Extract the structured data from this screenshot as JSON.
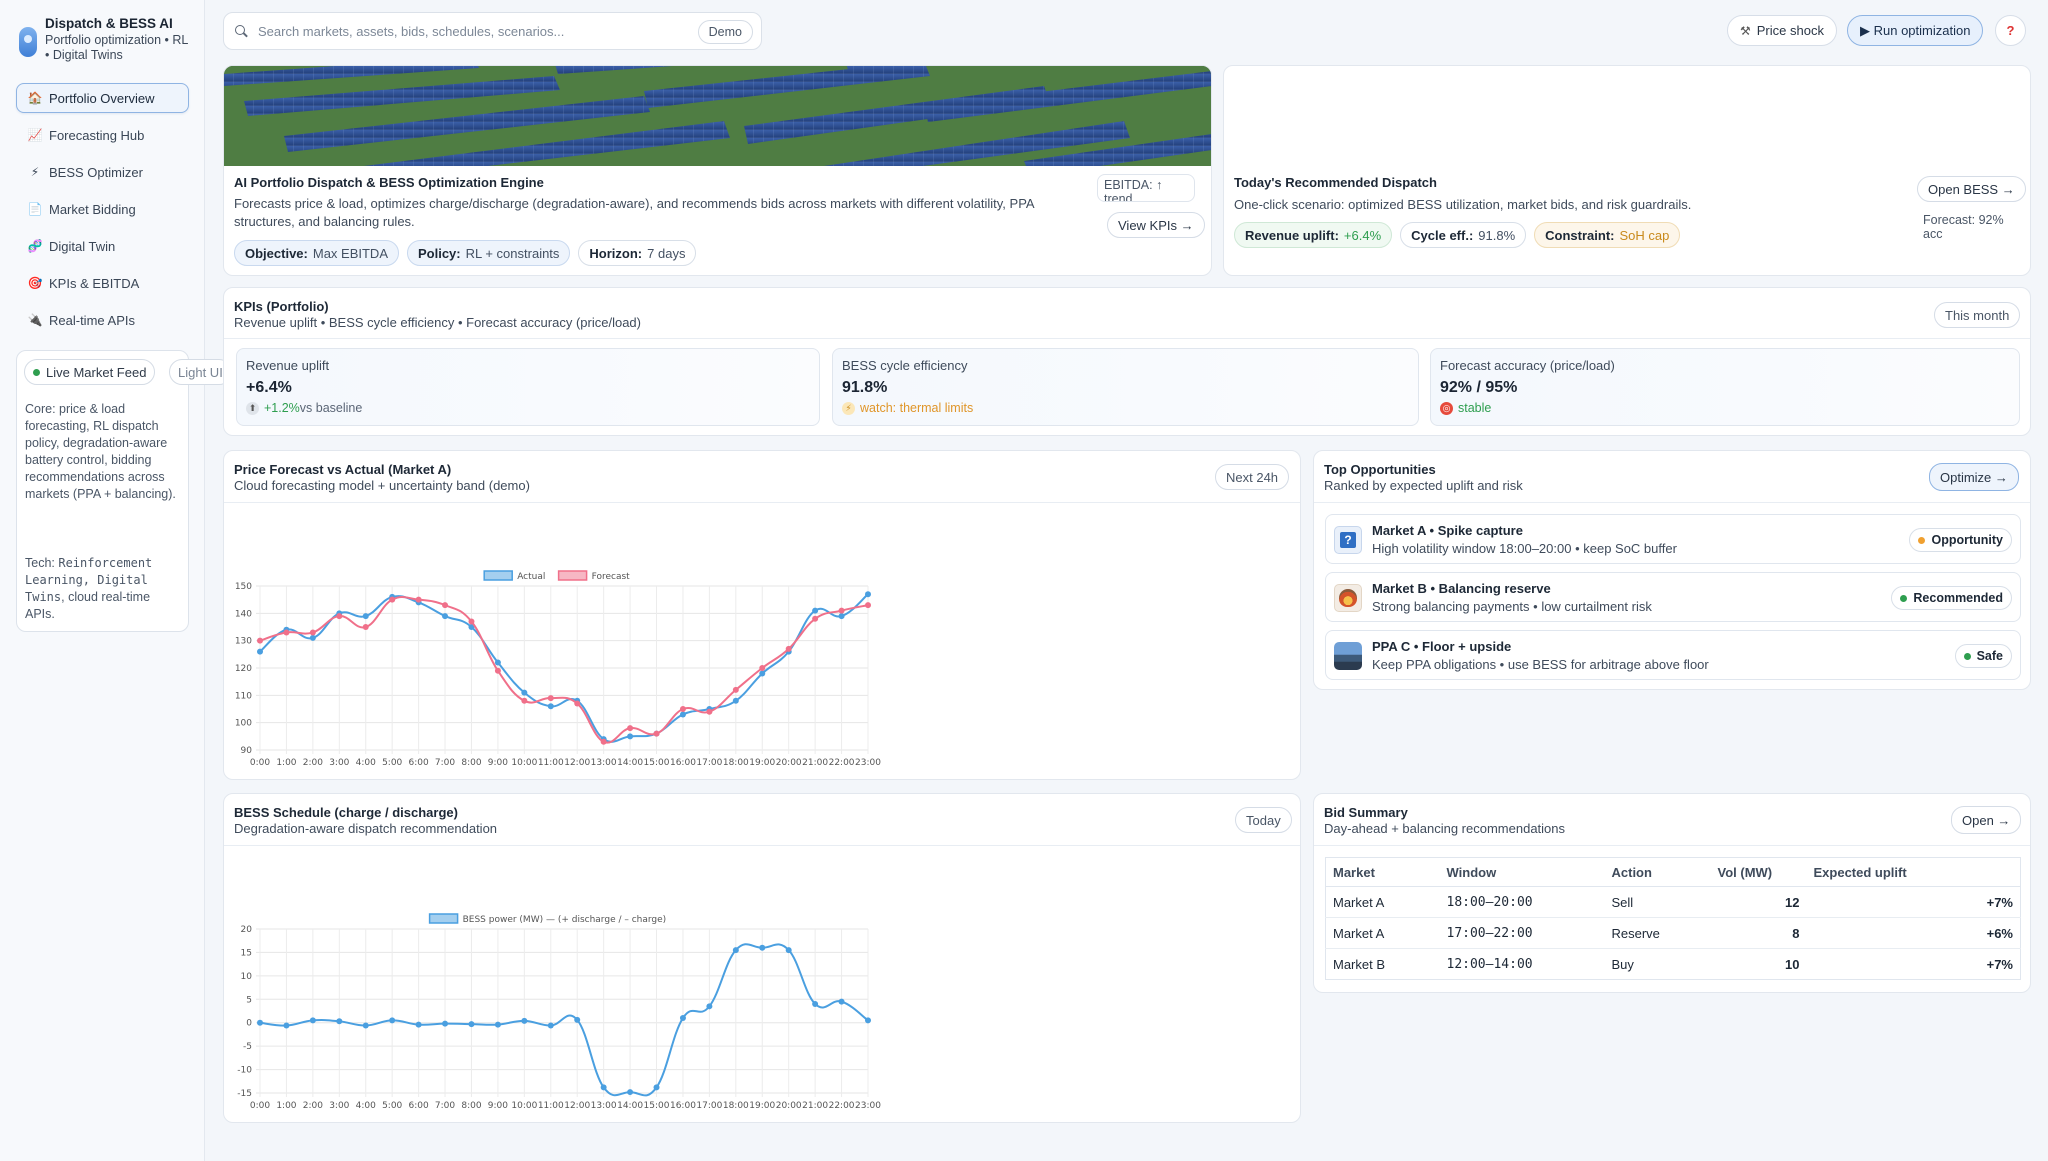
{
  "brand": {
    "title": "Dispatch & BESS AI",
    "subtitle": "Portfolio optimization • RL • Digital Twins"
  },
  "sidebar": {
    "items": [
      {
        "label": "Portfolio Overview",
        "icon": "home-icon"
      },
      {
        "label": "Forecasting Hub",
        "icon": "chart-icon"
      },
      {
        "label": "BESS Optimizer",
        "icon": "battery-icon"
      },
      {
        "label": "Market Bidding",
        "icon": "document-icon"
      },
      {
        "label": "Digital Twin",
        "icon": "dna-icon"
      },
      {
        "label": "KPIs & EBITDA",
        "icon": "target-icon"
      },
      {
        "label": "Real-time APIs",
        "icon": "plug-icon"
      }
    ],
    "live_feed": "Live Market Feed",
    "light_ui": "Light UI",
    "core_text": "Core: price & load forecasting, RL dispatch policy, degradation-aware battery control, bidding recommendations across markets (PPA + balancing).",
    "tech_prefix": "Tech: ",
    "tech_mono": "Reinforcement Learning, Digital Twins",
    "tech_suffix": ", cloud real-time APIs."
  },
  "search": {
    "placeholder": "Search markets, assets, bids, schedules, scenarios...",
    "demo_label": "Demo"
  },
  "topbar": {
    "price_shock": "Price shock",
    "run_optimization": "▶ Run optimization",
    "help": "?"
  },
  "hero": {
    "title": "AI Portfolio Dispatch & BESS Optimization Engine",
    "description": "Forecasts price & load, optimizes charge/discharge (degradation-aware), and recommends bids across markets with different volatility, PPA structures, and balancing rules.",
    "pills": [
      {
        "key": "Objective:",
        "value": "Max EBITDA"
      },
      {
        "key": "Policy:",
        "value": "RL + constraints"
      },
      {
        "key": "Horizon:",
        "value": "7 days"
      }
    ],
    "ebitda_note": "EBITDA: ↑ trend",
    "view_kpis": "View KPIs →"
  },
  "dispatch": {
    "title": "Today's Recommended Dispatch",
    "subtitle": "One-click scenario: optimized BESS utilization, market bids, and risk guardrails.",
    "pills": [
      {
        "key": "Revenue uplift:",
        "value": "+6.4%",
        "color": "#2e9e4f"
      },
      {
        "key": "Cycle eff.:",
        "value": "91.8%",
        "color": "#435062"
      },
      {
        "key": "Constraint:",
        "value": "SoH cap",
        "color": "#c98a1c"
      }
    ],
    "open_bess": "Open BESS →",
    "forecast_note": "Forecast: 92% acc"
  },
  "kpis": {
    "title": "KPIs (Portfolio)",
    "subtitle": "Revenue uplift • BESS cycle efficiency • Forecast accuracy (price/load)",
    "period": "This month",
    "tiles": [
      {
        "label": "Revenue uplift",
        "value": "+6.4%",
        "note_strong": "+1.2%",
        "note_rest": " vs baseline",
        "note_color": "#2e9e4f"
      },
      {
        "label": "BESS cycle efficiency",
        "value": "91.8%",
        "note_strong": "watch: thermal limits",
        "note_rest": "",
        "note_color": "#e0962a"
      },
      {
        "label": "Forecast accuracy (price/load)",
        "value": "92% / 95%",
        "note_strong": "stable",
        "note_rest": "",
        "note_color": "#2e9e4f"
      }
    ]
  },
  "price_chart": {
    "title": "Price Forecast vs Actual (Market A)",
    "subtitle": "Cloud forecasting model + uncertainty band (demo)",
    "badge": "Next 24h"
  },
  "bess_chart": {
    "title": "BESS Schedule (charge / discharge)",
    "subtitle": "Degradation-aware dispatch recommendation",
    "badge": "Today"
  },
  "chart_data": [
    {
      "type": "line",
      "categories": [
        "0:00",
        "1:00",
        "2:00",
        "3:00",
        "4:00",
        "5:00",
        "6:00",
        "7:00",
        "8:00",
        "9:00",
        "10:00",
        "11:00",
        "12:00",
        "13:00",
        "14:00",
        "15:00",
        "16:00",
        "17:00",
        "18:00",
        "19:00",
        "20:00",
        "21:00",
        "22:00",
        "23:00"
      ],
      "series": [
        {
          "name": "Actual",
          "color": "#4a9fe0",
          "values": [
            126,
            134,
            131,
            140,
            139,
            146,
            144,
            139,
            135,
            122,
            111,
            106,
            108,
            94,
            95,
            96,
            103,
            105,
            108,
            118,
            126,
            141,
            139,
            147
          ]
        },
        {
          "name": "Forecast",
          "color": "#f0708a",
          "values": [
            130,
            133,
            133,
            139,
            135,
            145,
            145,
            143,
            137,
            119,
            108,
            109,
            107,
            93,
            98,
            96,
            105,
            104,
            112,
            120,
            127,
            138,
            141,
            143
          ]
        }
      ],
      "ylim": [
        90,
        150
      ],
      "yticks": [
        90,
        100,
        110,
        120,
        130,
        140,
        150
      ],
      "grid": true,
      "legend": "top-center"
    },
    {
      "type": "line",
      "categories": [
        "0:00",
        "1:00",
        "2:00",
        "3:00",
        "4:00",
        "5:00",
        "6:00",
        "7:00",
        "8:00",
        "9:00",
        "10:00",
        "11:00",
        "12:00",
        "13:00",
        "14:00",
        "15:00",
        "16:00",
        "17:00",
        "18:00",
        "19:00",
        "20:00",
        "21:00",
        "22:00",
        "23:00"
      ],
      "series": [
        {
          "name": "BESS power (MW) — (+ discharge / – charge)",
          "color": "#4a9fe0",
          "values": [
            0,
            -0.6,
            0.5,
            0.3,
            -0.6,
            0.5,
            -0.4,
            -0.2,
            -0.3,
            -0.4,
            0.4,
            -0.6,
            0.6,
            -13.8,
            -14.8,
            -13.8,
            1,
            3.5,
            15.5,
            16,
            15.5,
            4,
            4.5,
            0.5
          ]
        }
      ],
      "ylim": [
        -15,
        20
      ],
      "yticks": [
        -15,
        -10,
        -5,
        0,
        5,
        10,
        15,
        20
      ],
      "grid": true,
      "legend": "top-center"
    }
  ],
  "opportunities": {
    "title": "Top Opportunities",
    "subtitle": "Ranked by expected uplift and risk",
    "optimize": "Optimize →",
    "items": [
      {
        "title": "Market A • Spike capture",
        "sub": "High volatility window 18:00–20:00 • keep SoC buffer",
        "badge": "Opportunity",
        "dot": "#f0a030",
        "thumb": "question-icon"
      },
      {
        "title": "Market B • Balancing reserve",
        "sub": "Strong balancing payments • low curtailment risk",
        "badge": "Recommended",
        "dot": "#2e9e4f",
        "thumb": "flame-icon"
      },
      {
        "title": "PPA C • Floor + upside",
        "sub": "Keep PPA obligations • use BESS for arbitrage above floor",
        "badge": "Safe",
        "dot": "#2e9e4f",
        "thumb": "landscape-icon"
      }
    ]
  },
  "bids": {
    "title": "Bid Summary",
    "subtitle": "Day-ahead + balancing recommendations",
    "open": "Open →",
    "headers": [
      "Market",
      "Window",
      "Action",
      "Vol (MW)",
      "Expected uplift"
    ],
    "rows": [
      {
        "market": "Market A",
        "window": "18:00–20:00",
        "action": "Sell",
        "vol": "12",
        "uplift": "+7%"
      },
      {
        "market": "Market A",
        "window": "17:00–22:00",
        "action": "Reserve",
        "vol": "8",
        "uplift": "+6%"
      },
      {
        "market": "Market B",
        "window": "12:00–14:00",
        "action": "Buy",
        "vol": "10",
        "uplift": "+7%"
      }
    ]
  }
}
